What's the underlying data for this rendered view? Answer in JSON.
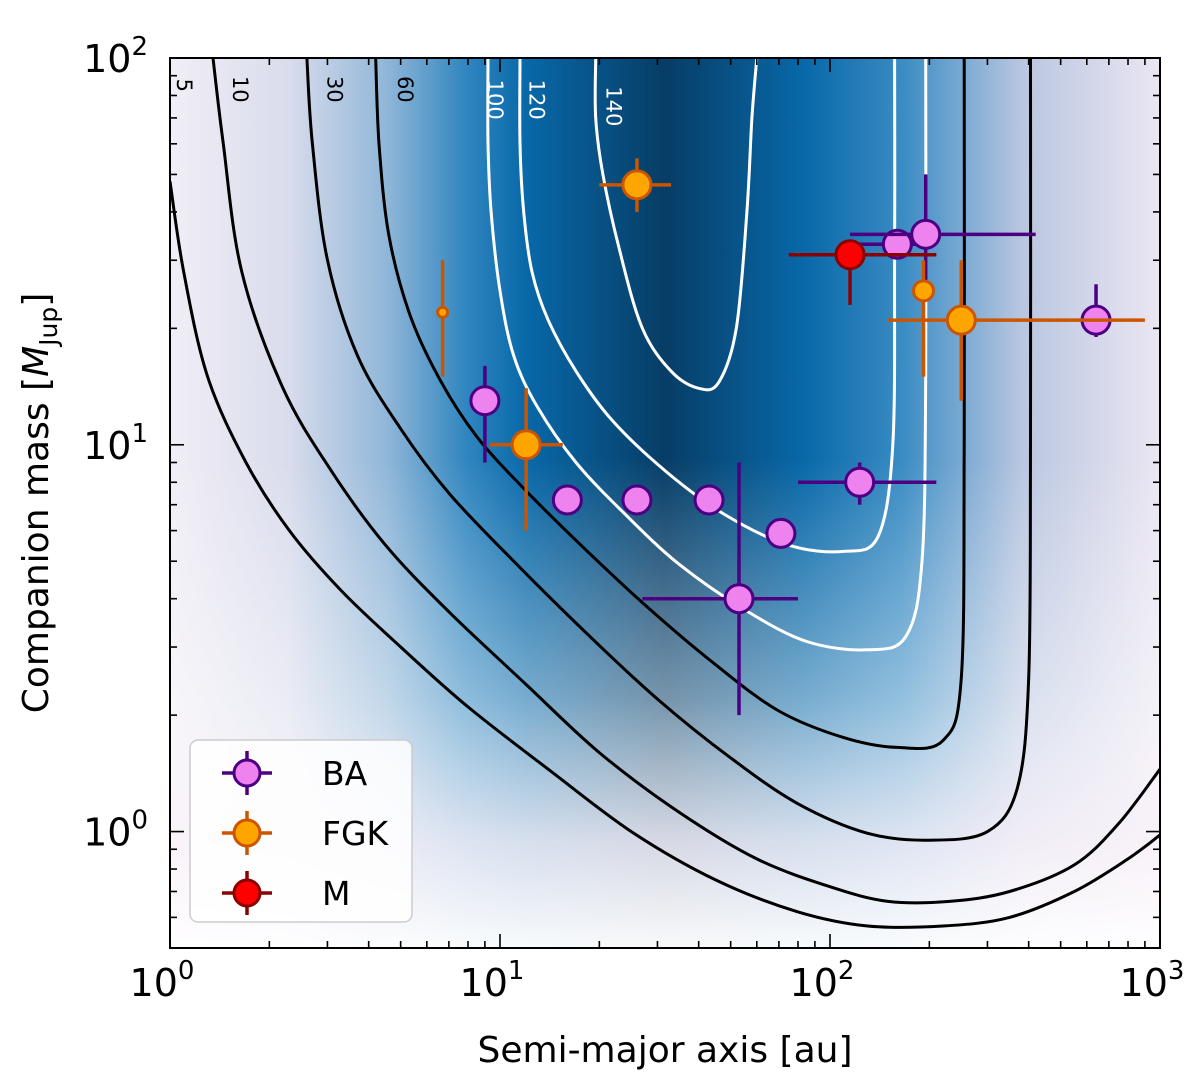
{
  "chart_data": {
    "type": "scatter",
    "xlabel": "Semi-major axis [au]",
    "ylabel_prefix": "Companion mass [",
    "ylabel_symbol": "M",
    "ylabel_sub": "Jup",
    "ylabel_suffix": "]",
    "xscale": "log",
    "yscale": "log",
    "xlim": [
      1,
      1000
    ],
    "ylim": [
      0.5,
      100
    ],
    "x_ticks": [
      {
        "base": "10",
        "exp": "0",
        "value": 1
      },
      {
        "base": "10",
        "exp": "1",
        "value": 10
      },
      {
        "base": "10",
        "exp": "2",
        "value": 100
      },
      {
        "base": "10",
        "exp": "3",
        "value": 1000
      }
    ],
    "y_ticks": [
      {
        "base": "10",
        "exp": "0",
        "value": 1
      },
      {
        "base": "10",
        "exp": "1",
        "value": 10
      },
      {
        "base": "10",
        "exp": "2",
        "value": 100
      }
    ],
    "background": "detection-probability map (number of stars with sensitivity), color scale white to dark blue",
    "contours": [
      {
        "level": "5",
        "color": "#000000",
        "points": [
          [
            1.0,
            48
          ],
          [
            1.1,
            28
          ],
          [
            1.3,
            15
          ],
          [
            1.7,
            9
          ],
          [
            2.3,
            6
          ],
          [
            3.3,
            4.2
          ],
          [
            5,
            3.0
          ],
          [
            8,
            2.1
          ],
          [
            14,
            1.45
          ],
          [
            25,
            1.0
          ],
          [
            45,
            0.75
          ],
          [
            80,
            0.62
          ],
          [
            130,
            0.57
          ],
          [
            220,
            0.57
          ],
          [
            350,
            0.6
          ],
          [
            550,
            0.7
          ],
          [
            800,
            0.85
          ],
          [
            1000,
            0.98
          ]
        ]
      },
      {
        "level": "10",
        "color": "#000000",
        "points": [
          [
            1.35,
            100
          ],
          [
            1.45,
            60
          ],
          [
            1.65,
            28
          ],
          [
            2.2,
            14
          ],
          [
            3.1,
            8.5
          ],
          [
            4.5,
            5.5
          ],
          [
            7,
            3.7
          ],
          [
            12,
            2.4
          ],
          [
            20,
            1.6
          ],
          [
            35,
            1.12
          ],
          [
            60,
            0.85
          ],
          [
            100,
            0.72
          ],
          [
            150,
            0.66
          ],
          [
            230,
            0.66
          ],
          [
            350,
            0.7
          ],
          [
            550,
            0.82
          ],
          [
            750,
            1.05
          ],
          [
            1000,
            1.45
          ]
        ]
      },
      {
        "level": "30",
        "color": "#000000",
        "points": [
          [
            2.6,
            100
          ],
          [
            2.7,
            60
          ],
          [
            3.0,
            30
          ],
          [
            3.7,
            17
          ],
          [
            5,
            11
          ],
          [
            7,
            7.5
          ],
          [
            11,
            5
          ],
          [
            18,
            3.3
          ],
          [
            30,
            2.2
          ],
          [
            50,
            1.55
          ],
          [
            80,
            1.18
          ],
          [
            130,
            0.99
          ],
          [
            200,
            0.95
          ],
          [
            300,
            1.0
          ],
          [
            370,
            1.3
          ],
          [
            400,
            2.5
          ],
          [
            405,
            10
          ],
          [
            405,
            100
          ]
        ]
      },
      {
        "level": "60",
        "color": "#000000",
        "points": [
          [
            4.2,
            100
          ],
          [
            4.3,
            60
          ],
          [
            4.6,
            35
          ],
          [
            5.3,
            22
          ],
          [
            6.5,
            15
          ],
          [
            8.5,
            10.5
          ],
          [
            12,
            7.6
          ],
          [
            18,
            5.4
          ],
          [
            28,
            3.8
          ],
          [
            45,
            2.7
          ],
          [
            70,
            2.05
          ],
          [
            110,
            1.75
          ],
          [
            160,
            1.65
          ],
          [
            220,
            1.72
          ],
          [
            250,
            2.5
          ],
          [
            255,
            10
          ],
          [
            255,
            100
          ]
        ]
      },
      {
        "level": "100",
        "color": "#ffffff",
        "points": [
          [
            9.2,
            100
          ],
          [
            9.2,
            60
          ],
          [
            9.4,
            40
          ],
          [
            10,
            25
          ],
          [
            11,
            17
          ],
          [
            13,
            12.5
          ],
          [
            17,
            9
          ],
          [
            24,
            6.6
          ],
          [
            35,
            4.9
          ],
          [
            55,
            3.75
          ],
          [
            85,
            3.1
          ],
          [
            130,
            2.95
          ],
          [
            170,
            3.2
          ],
          [
            190,
            5
          ],
          [
            195,
            15
          ],
          [
            195,
            100
          ]
        ]
      },
      {
        "level": "120",
        "color": "#ffffff",
        "points": [
          [
            11.5,
            100
          ],
          [
            11.5,
            60
          ],
          [
            11.8,
            40
          ],
          [
            12.5,
            28
          ],
          [
            14,
            21
          ],
          [
            17,
            15.5
          ],
          [
            22,
            11.5
          ],
          [
            32,
            8.5
          ],
          [
            48,
            6.6
          ],
          [
            75,
            5.5
          ],
          [
            110,
            5.3
          ],
          [
            140,
            5.8
          ],
          [
            155,
            10
          ],
          [
            157,
            30
          ],
          [
            157,
            100
          ]
        ]
      },
      {
        "level": "140",
        "color": "#ffffff",
        "points": [
          [
            19.5,
            100
          ],
          [
            19.5,
            70
          ],
          [
            20.5,
            50
          ],
          [
            23,
            32
          ],
          [
            27,
            20
          ],
          [
            33,
            15.5
          ],
          [
            40,
            14
          ],
          [
            46,
            14.5
          ],
          [
            52,
            20
          ],
          [
            56,
            40
          ],
          [
            58,
            70
          ],
          [
            60,
            100
          ]
        ]
      }
    ],
    "contour_labels": [
      {
        "text": "5",
        "x": 1.05,
        "y": 85
      },
      {
        "text": "10",
        "x": 1.55,
        "y": 83
      },
      {
        "text": "30",
        "x": 3.0,
        "y": 83
      },
      {
        "text": "60",
        "x": 4.9,
        "y": 83
      },
      {
        "text": "100",
        "x": 9.2,
        "y": 78
      },
      {
        "text": "120",
        "x": 12.3,
        "y": 78
      },
      {
        "text": "140",
        "x": 21.0,
        "y": 75
      }
    ],
    "series": [
      {
        "name": "BA",
        "fill": "#ee82ee",
        "edge": "#4b0082",
        "points": [
          {
            "x": 9.0,
            "y": 13,
            "xerr": [
              9.0,
              9.0
            ],
            "yerr": [
              9.0,
              16
            ]
          },
          {
            "x": 16,
            "y": 7.2,
            "xerr": [
              16,
              16
            ],
            "yerr": [
              6.6,
              7.2
            ]
          },
          {
            "x": 26,
            "y": 7.2,
            "xerr": [
              26,
              26
            ],
            "yerr": [
              7.2,
              7.2
            ]
          },
          {
            "x": 43,
            "y": 7.2,
            "xerr": [
              43,
              43
            ],
            "yerr": [
              6.8,
              7.2
            ]
          },
          {
            "x": 71,
            "y": 5.9,
            "xerr": [
              71,
              71
            ],
            "yerr": [
              5.9,
              5.9
            ]
          },
          {
            "x": 53,
            "y": 4.0,
            "xerr": [
              27,
              80
            ],
            "yerr": [
              2.0,
              9.0
            ]
          },
          {
            "x": 123,
            "y": 8.0,
            "xerr": [
              80,
              210
            ],
            "yerr": [
              7.0,
              9.0
            ]
          },
          {
            "x": 160,
            "y": 33,
            "xerr": [
              110,
              200
            ],
            "yerr": [
              33,
              33
            ]
          },
          {
            "x": 195,
            "y": 35,
            "xerr": [
              115,
              420
            ],
            "yerr": [
              25,
              50
            ]
          },
          {
            "x": 640,
            "y": 21,
            "xerr": [
              640,
              640
            ],
            "yerr": [
              19,
              26
            ]
          }
        ]
      },
      {
        "name": "FGK",
        "fill": "#ffa500",
        "edge": "#cc5500",
        "points": [
          {
            "x": 6.7,
            "y": 22,
            "size": "small",
            "xerr": [
              6.7,
              6.7
            ],
            "yerr": [
              15,
              30
            ]
          },
          {
            "x": 12,
            "y": 10,
            "xerr": [
              9.3,
              15.5
            ],
            "yerr": [
              6.0,
              14
            ]
          },
          {
            "x": 26,
            "y": 47,
            "xerr": [
              20,
              33
            ],
            "yerr": [
              40,
              55
            ]
          },
          {
            "x": 192,
            "y": 25,
            "size": "medium",
            "xerr": [
              192,
              192
            ],
            "yerr": [
              15,
              30
            ]
          },
          {
            "x": 250,
            "y": 21,
            "xerr": [
              150,
              900
            ],
            "yerr": [
              13,
              30
            ]
          }
        ]
      },
      {
        "name": "M",
        "fill": "#ff0000",
        "edge": "#8b0000",
        "points": [
          {
            "x": 115,
            "y": 31,
            "xerr": [
              75,
              210
            ],
            "yerr": [
              23,
              31
            ]
          }
        ]
      }
    ],
    "legend": {
      "placement": "lower-left",
      "entries": [
        "BA",
        "FGK",
        "M"
      ]
    }
  }
}
